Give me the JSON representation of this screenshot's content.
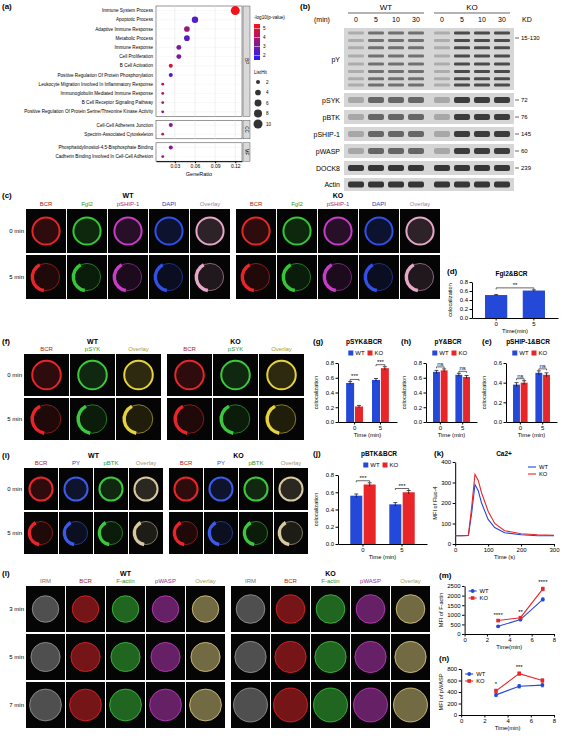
{
  "panel_letters": [
    "(a)",
    "(b)",
    "(c)",
    "(d)",
    "(e)",
    "(f)",
    "(g)",
    "(h)",
    "(i)",
    "(j)",
    "(k)",
    "(l)",
    "(m)",
    "(n)"
  ],
  "chart_data": [
    {
      "type": "scatter",
      "x_label": "GeneRatio",
      "categories": [
        "Immune System Process",
        "Apoptotic Process",
        "Adaptive Immune Response",
        "Metabolic Process",
        "Immune Response",
        "Cell Proliferation",
        "B Cell Activation",
        "Positive Regulation Of Protein Phosphorylation",
        "Leukocyte Migration Involved In Inflammatory Response",
        "Immunoglobulin Mediated Immune Response",
        "B Cell Receptor Signaling Pathway",
        "Positive Regulation Of Protein Serine/Threonine Kinase Activity",
        "Cell-Cell Adherens Junction",
        "Spectrin-Associated Cytoskeleton",
        "Phosphatidylinositol-4,5-Bisphosphate Binding",
        "Cadherin Binding Involved In Cell-Cell Adhesion"
      ],
      "groups": [
        "BP",
        "BP",
        "BP",
        "BP",
        "BP",
        "BP",
        "BP",
        "BP",
        "BP",
        "BP",
        "BP",
        "BP",
        "CC",
        "CC",
        "MF",
        "MF"
      ],
      "values": [
        0.12,
        0.06,
        0.048,
        0.048,
        0.036,
        0.036,
        0.024,
        0.024,
        0.012,
        0.012,
        0.012,
        0.012,
        0.024,
        0.012,
        0.024,
        0.012
      ],
      "sizes": [
        10,
        5,
        4,
        4,
        3,
        3,
        2,
        2,
        1,
        1,
        1,
        1,
        2,
        1,
        2,
        1
      ],
      "color_values": [
        5.3,
        2.4,
        3.6,
        2.5,
        3.2,
        3.1,
        4.8,
        2.2,
        4.2,
        4.2,
        3.6,
        3.4,
        3.4,
        4.3,
        3.3,
        4.1
      ],
      "xlim": [
        0.002,
        0.13
      ],
      "xticks": [
        0.03,
        0.06,
        0.09,
        0.12
      ],
      "colorbar": {
        "title": "-log10(p-value)",
        "range": [
          1.5,
          5.5
        ],
        "ticks": [
          2,
          3,
          4,
          5
        ],
        "colors": [
          "#2020ff",
          "#ff1010"
        ]
      },
      "size_legend": {
        "title": "ListHit",
        "values": [
          2,
          4,
          6,
          8,
          10
        ]
      },
      "grid": true,
      "legend": "right"
    },
    {
      "type": "bar",
      "title": "Fgl2&BCR",
      "x_label": "Time(min)",
      "y_label": "colocalization",
      "categories": [
        "0",
        "5"
      ],
      "series": [
        {
          "color": "#2448d8",
          "values": [
            0.51,
            0.61
          ],
          "errors": [
            0.01,
            0.015
          ]
        }
      ],
      "ylim": [
        0,
        0.8
      ],
      "yticks": [
        {
          "value": 0,
          "label": "0.0"
        },
        0.2,
        0.4,
        0.6,
        0.8
      ],
      "annotations": [
        {
          "categories": [
            0,
            1
          ],
          "text": "**"
        }
      ]
    },
    {
      "type": "bar",
      "title": "pSYK&BCR",
      "x_label": "Time (min)",
      "y_label": "colocalization",
      "categories": [
        "0",
        "5"
      ],
      "series": [
        {
          "name": "WT",
          "color": "#2448d8",
          "values": [
            0.53,
            0.57
          ],
          "errors": [
            0.02,
            0.02
          ]
        },
        {
          "name": "KO",
          "color": "#e8262a",
          "values": [
            0.21,
            0.73
          ],
          "errors": [
            0.015,
            0.02
          ]
        }
      ],
      "ylim": [
        0,
        0.8
      ],
      "yticks": [
        {
          "value": 0,
          "label": "0.0"
        },
        0.2,
        0.4,
        0.6,
        0.8
      ],
      "annotations": [
        {
          "category": 0,
          "text": "***"
        },
        {
          "category": 1,
          "text": "***"
        }
      ],
      "legend": "top"
    },
    {
      "type": "bar",
      "title": "pY&BCR",
      "x_label": "Time (min)",
      "y_label": "colocalization",
      "categories": [
        "0",
        "5"
      ],
      "series": [
        {
          "name": "WT",
          "color": "#2448d8",
          "values": [
            0.68,
            0.64
          ],
          "errors": [
            0.02,
            0.02
          ]
        },
        {
          "name": "KO",
          "color": "#e8262a",
          "values": [
            0.7,
            0.61
          ],
          "errors": [
            0.02,
            0.02
          ]
        }
      ],
      "ylim": [
        0,
        0.8
      ],
      "yticks": [
        {
          "value": 0,
          "label": "0.0"
        },
        0.2,
        0.4,
        0.6,
        0.8
      ],
      "annotations": [
        {
          "category": 0,
          "text": "ns"
        },
        {
          "category": 1,
          "text": "ns"
        }
      ],
      "legend": "top"
    },
    {
      "type": "bar",
      "title": "pSHIP-1&BCR",
      "x_label": "Time (min)",
      "y_label": "colocalization",
      "categories": [
        "0",
        "5"
      ],
      "series": [
        {
          "name": "WT",
          "color": "#2448d8",
          "values": [
            0.38,
            0.5
          ],
          "errors": [
            0.02,
            0.02
          ]
        },
        {
          "name": "KO",
          "color": "#e8262a",
          "values": [
            0.4,
            0.48
          ],
          "errors": [
            0.02,
            0.02
          ]
        }
      ],
      "ylim": [
        0,
        0.6
      ],
      "yticks": [
        {
          "value": 0,
          "label": "0.0"
        },
        0.2,
        0.4,
        0.6
      ],
      "annotations": [
        {
          "category": 0,
          "text": "ns"
        },
        {
          "category": 1,
          "text": "ns"
        }
      ],
      "legend": "top"
    },
    {
      "type": "bar",
      "title": "pBTK&BCR",
      "x_label": "Time (min)",
      "y_label": "colocalization",
      "categories": [
        "0",
        "5"
      ],
      "series": [
        {
          "name": "WT",
          "color": "#2448d8",
          "values": [
            0.56,
            0.46
          ],
          "errors": [
            0.02,
            0.02
          ]
        },
        {
          "name": "KO",
          "color": "#e8262a",
          "values": [
            0.69,
            0.6
          ],
          "errors": [
            0.02,
            0.02
          ]
        }
      ],
      "ylim": [
        0,
        0.8
      ],
      "yticks": [
        {
          "value": 0,
          "label": "0.0"
        },
        0.2,
        0.4,
        0.6,
        0.8
      ],
      "annotations": [
        {
          "category": 0,
          "text": "***"
        },
        {
          "category": 1,
          "text": "***"
        }
      ],
      "legend": "top"
    },
    {
      "type": "line",
      "title": "Ca2+",
      "x_label": "Time (s)",
      "y_label": "MFI of Fluo-4",
      "x": [
        0,
        20,
        40,
        50,
        60,
        70,
        80,
        100,
        120,
        150,
        200,
        250,
        300
      ],
      "series": [
        {
          "name": "WT",
          "color": "#2448d8",
          "values": [
            40,
            40,
            42,
            150,
            290,
            260,
            200,
            120,
            80,
            55,
            45,
            40,
            40
          ]
        },
        {
          "name": "KO",
          "color": "#e8262a",
          "values": [
            40,
            40,
            42,
            180,
            340,
            310,
            250,
            160,
            100,
            65,
            50,
            45,
            42
          ]
        }
      ],
      "xlim": [
        0,
        300
      ],
      "xticks": [
        0,
        100,
        200,
        300
      ],
      "ylim": [
        0,
        400
      ],
      "yticks": [
        0,
        100,
        200,
        300,
        400
      ],
      "legend": "top-right"
    },
    {
      "type": "line",
      "x_label": "Time(min)",
      "y_label": "MFI of F-actin",
      "x": [
        3,
        5,
        7
      ],
      "series": [
        {
          "name": "WT",
          "color": "#2448d8",
          "marker": "circle",
          "values": [
            400,
            750,
            1800
          ],
          "errors": [
            40,
            60,
            80
          ]
        },
        {
          "name": "KO",
          "color": "#e8262a",
          "marker": "square",
          "values": [
            700,
            850,
            2350
          ],
          "errors": [
            50,
            60,
            90
          ]
        }
      ],
      "xlim": [
        0,
        8
      ],
      "xticks": [
        0,
        2,
        4,
        6,
        8
      ],
      "ylim": [
        0,
        2500
      ],
      "yticks": [
        0,
        500,
        1000,
        1500,
        2000,
        2500
      ],
      "annotations": [
        {
          "x": 3,
          "text": "****"
        },
        {
          "x": 5,
          "text": "**"
        },
        {
          "x": 7,
          "text": "****"
        }
      ],
      "legend": "top-left"
    },
    {
      "type": "line",
      "x_label": "Time(min)",
      "y_label": "MFI of pWASP",
      "x": [
        3,
        5,
        7
      ],
      "series": [
        {
          "name": "WT",
          "color": "#2448d8",
          "marker": "circle",
          "values": [
            350,
            500,
            520
          ],
          "errors": [
            30,
            30,
            30
          ]
        },
        {
          "name": "KO",
          "color": "#e8262a",
          "marker": "square",
          "values": [
            420,
            720,
            600
          ],
          "errors": [
            30,
            30,
            30
          ]
        }
      ],
      "xlim": [
        0,
        8
      ],
      "xticks": [
        0,
        2,
        4,
        6,
        8
      ],
      "ylim": [
        0,
        800
      ],
      "yticks": [
        0,
        200,
        400,
        600,
        800
      ],
      "annotations": [
        {
          "x": 3,
          "text": "*"
        },
        {
          "x": 5,
          "text": "***"
        }
      ],
      "legend": "top-left"
    }
  ],
  "blot": {
    "time_label": "(min)",
    "size_label": "KD",
    "groups": [
      "WT",
      "KO"
    ],
    "times": [
      "0",
      "5",
      "10",
      "30"
    ],
    "rows": [
      {
        "name": "pY",
        "size": "15-130"
      },
      {
        "name": "pSYK",
        "size": "72"
      },
      {
        "name": "pBTK",
        "size": "76"
      },
      {
        "name": "pSHIP-1",
        "size": "145"
      },
      {
        "name": "pWASP",
        "size": "60"
      },
      {
        "name": "DOCK8",
        "size": "239"
      },
      {
        "name": "Actin"
      }
    ]
  },
  "micrographs": [
    {
      "groups": [
        "WT",
        "KO"
      ],
      "rows": [
        "0 min",
        "5 min"
      ],
      "channels": [
        {
          "name": "BCR",
          "color": "#e8262a"
        },
        {
          "name": "Fgl2",
          "color": "#34c934"
        },
        {
          "name": "pSHIP-1",
          "color": "#c83cc8"
        },
        {
          "name": "DAPI",
          "color": "#3050e8"
        },
        {
          "name": "Overlay",
          "color": "#e6a8c8"
        }
      ]
    },
    {
      "groups": [
        "WT",
        "KO"
      ],
      "rows": [
        "0 min",
        "5 min"
      ],
      "channels": [
        {
          "name": "BCR",
          "color": "#e8262a"
        },
        {
          "name": "pSYK",
          "color": "#3cc83c"
        },
        {
          "name": "Overlay",
          "color": "#e6d23c"
        }
      ]
    },
    {
      "groups": [
        "WT",
        "KO"
      ],
      "rows": [
        "0 min",
        "5 min"
      ],
      "channels": [
        {
          "name": "BCR",
          "color": "#e8262a"
        },
        {
          "name": "PY",
          "color": "#3c5ae6"
        },
        {
          "name": "pBTK",
          "color": "#3cc83c"
        },
        {
          "name": "Overlay",
          "color": "#d8c8a0"
        }
      ]
    },
    {
      "groups": [
        "WT",
        "KO"
      ],
      "rows": [
        "3 min",
        "5 min",
        "7 min"
      ],
      "channels": [
        {
          "name": "IRM",
          "color": "#9a9a9a"
        },
        {
          "name": "BCR",
          "color": "#e8262a"
        },
        {
          "name": "F-actin",
          "color": "#3cc83c"
        },
        {
          "name": "pWASP",
          "color": "#c83cc8"
        },
        {
          "name": "Overlay",
          "color": "#e0d080"
        }
      ]
    }
  ]
}
